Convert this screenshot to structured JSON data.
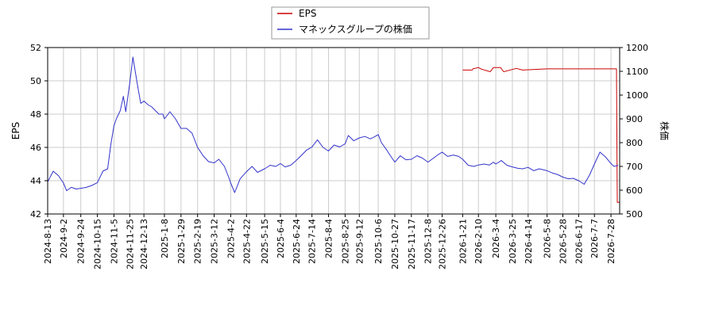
{
  "chart_data": {
    "type": "line",
    "title": "",
    "legend": {
      "placement": "top-center",
      "entries": [
        {
          "label": "EPS",
          "color": "#cc0000"
        },
        {
          "label": "マネックスグループの株価",
          "color": "#3333cc"
        }
      ]
    },
    "x_axis": {
      "type": "date",
      "range": [
        "2024-08-13",
        "2026-08-08"
      ],
      "tick_labels": [
        "2024-8-13",
        "2024-9-2",
        "2024-9-24",
        "2024-10-15",
        "2024-11-5",
        "2024-11-25",
        "2024-12-13",
        "2025-1-8",
        "2025-1-29",
        "2025-2-19",
        "2025-3-12",
        "2025-4-2",
        "2025-4-22",
        "2025-5-15",
        "2025-6-4",
        "2025-6-24",
        "2025-7-14",
        "2025-8-4",
        "2025-8-25",
        "2025-9-12",
        "2025-10-6",
        "2025-10-27",
        "2025-11-17",
        "2025-12-8",
        "2025-12-26",
        "2026-1-21",
        "2026-2-10",
        "2026-3-4",
        "2026-3-25",
        "2026-4-14",
        "2026-5-8",
        "2026-5-28",
        "2026-6-17",
        "2026-7-7",
        "2026-7-28"
      ]
    },
    "y_left": {
      "label": "EPS",
      "min": 42,
      "max": 52,
      "ticks": [
        42,
        44,
        46,
        48,
        50,
        52
      ]
    },
    "y_right": {
      "label": "株価",
      "min": 500,
      "max": 1200,
      "ticks": [
        500,
        600,
        700,
        800,
        900,
        1000,
        1100,
        1200
      ]
    },
    "grid": true,
    "series": [
      {
        "name": "EPS",
        "axis": "left",
        "color": "#cc0000",
        "points": [
          [
            "2026-01-21",
            50.65
          ],
          [
            "2026-02-02",
            50.65
          ],
          [
            "2026-02-03",
            50.72
          ],
          [
            "2026-02-10",
            50.8
          ],
          [
            "2026-02-14",
            50.7
          ],
          [
            "2026-02-25",
            50.55
          ],
          [
            "2026-03-01",
            50.8
          ],
          [
            "2026-03-10",
            50.8
          ],
          [
            "2026-03-14",
            50.55
          ],
          [
            "2026-03-30",
            50.75
          ],
          [
            "2026-04-07",
            50.65
          ],
          [
            "2026-05-08",
            50.72
          ],
          [
            "2026-08-04",
            50.72
          ],
          [
            "2026-08-05",
            42.7
          ],
          [
            "2026-08-08",
            42.7
          ]
        ]
      },
      {
        "name": "マネックスグループの株価",
        "axis": "right",
        "color": "#3333cc",
        "points": [
          [
            "2024-08-13",
            635
          ],
          [
            "2024-08-20",
            680
          ],
          [
            "2024-08-27",
            660
          ],
          [
            "2024-09-02",
            630
          ],
          [
            "2024-09-06",
            598
          ],
          [
            "2024-09-12",
            612
          ],
          [
            "2024-09-18",
            605
          ],
          [
            "2024-09-24",
            608
          ],
          [
            "2024-10-01",
            612
          ],
          [
            "2024-10-08",
            620
          ],
          [
            "2024-10-15",
            632
          ],
          [
            "2024-10-22",
            680
          ],
          [
            "2024-10-28",
            690
          ],
          [
            "2024-11-01",
            790
          ],
          [
            "2024-11-05",
            870
          ],
          [
            "2024-11-08",
            900
          ],
          [
            "2024-11-13",
            935
          ],
          [
            "2024-11-17",
            995
          ],
          [
            "2024-11-20",
            930
          ],
          [
            "2024-11-25",
            1050
          ],
          [
            "2024-11-29",
            1160
          ],
          [
            "2024-12-02",
            1100
          ],
          [
            "2024-12-06",
            1020
          ],
          [
            "2024-12-09",
            965
          ],
          [
            "2024-12-13",
            975
          ],
          [
            "2024-12-18",
            960
          ],
          [
            "2024-12-23",
            950
          ],
          [
            "2025-01-01",
            920
          ],
          [
            "2025-01-06",
            920
          ],
          [
            "2025-01-08",
            900
          ],
          [
            "2025-01-15",
            930
          ],
          [
            "2025-01-22",
            900
          ],
          [
            "2025-01-29",
            860
          ],
          [
            "2025-02-05",
            860
          ],
          [
            "2025-02-12",
            840
          ],
          [
            "2025-02-19",
            780
          ],
          [
            "2025-02-26",
            745
          ],
          [
            "2025-03-05",
            720
          ],
          [
            "2025-03-12",
            715
          ],
          [
            "2025-03-18",
            730
          ],
          [
            "2025-03-25",
            700
          ],
          [
            "2025-03-31",
            650
          ],
          [
            "2025-04-02",
            630
          ],
          [
            "2025-04-07",
            590
          ],
          [
            "2025-04-14",
            648
          ],
          [
            "2025-04-22",
            678
          ],
          [
            "2025-04-29",
            700
          ],
          [
            "2025-05-06",
            675
          ],
          [
            "2025-05-15",
            690
          ],
          [
            "2025-05-22",
            705
          ],
          [
            "2025-05-29",
            700
          ],
          [
            "2025-06-04",
            712
          ],
          [
            "2025-06-10",
            698
          ],
          [
            "2025-06-17",
            705
          ],
          [
            "2025-06-24",
            725
          ],
          [
            "2025-07-01",
            748
          ],
          [
            "2025-07-07",
            768
          ],
          [
            "2025-07-14",
            782
          ],
          [
            "2025-07-21",
            812
          ],
          [
            "2025-07-28",
            780
          ],
          [
            "2025-08-04",
            765
          ],
          [
            "2025-08-11",
            790
          ],
          [
            "2025-08-18",
            782
          ],
          [
            "2025-08-25",
            795
          ],
          [
            "2025-08-29",
            830
          ],
          [
            "2025-09-05",
            808
          ],
          [
            "2025-09-12",
            820
          ],
          [
            "2025-09-19",
            826
          ],
          [
            "2025-09-26",
            816
          ],
          [
            "2025-10-01",
            824
          ],
          [
            "2025-10-06",
            834
          ],
          [
            "2025-10-10",
            800
          ],
          [
            "2025-10-17",
            768
          ],
          [
            "2025-10-22",
            742
          ],
          [
            "2025-10-27",
            718
          ],
          [
            "2025-11-03",
            745
          ],
          [
            "2025-11-10",
            728
          ],
          [
            "2025-11-17",
            730
          ],
          [
            "2025-11-24",
            745
          ],
          [
            "2025-12-01",
            735
          ],
          [
            "2025-12-08",
            718
          ],
          [
            "2025-12-15",
            735
          ],
          [
            "2025-12-22",
            752
          ],
          [
            "2025-12-26",
            760
          ],
          [
            "2026-01-02",
            742
          ],
          [
            "2026-01-09",
            748
          ],
          [
            "2026-01-16",
            742
          ],
          [
            "2026-01-21",
            730
          ],
          [
            "2026-01-28",
            705
          ],
          [
            "2026-02-04",
            700
          ],
          [
            "2026-02-10",
            706
          ],
          [
            "2026-02-17",
            710
          ],
          [
            "2026-02-24",
            706
          ],
          [
            "2026-03-01",
            718
          ],
          [
            "2026-03-04",
            710
          ],
          [
            "2026-03-11",
            725
          ],
          [
            "2026-03-18",
            705
          ],
          [
            "2026-03-25",
            698
          ],
          [
            "2026-04-01",
            692
          ],
          [
            "2026-04-07",
            690
          ],
          [
            "2026-04-14",
            696
          ],
          [
            "2026-04-21",
            682
          ],
          [
            "2026-04-28",
            690
          ],
          [
            "2026-05-08",
            682
          ],
          [
            "2026-05-15",
            672
          ],
          [
            "2026-05-22",
            665
          ],
          [
            "2026-05-28",
            655
          ],
          [
            "2026-06-04",
            648
          ],
          [
            "2026-06-10",
            650
          ],
          [
            "2026-06-17",
            640
          ],
          [
            "2026-06-24",
            625
          ],
          [
            "2026-07-01",
            665
          ],
          [
            "2026-07-07",
            710
          ],
          [
            "2026-07-14",
            760
          ],
          [
            "2026-07-21",
            740
          ],
          [
            "2026-07-28",
            712
          ],
          [
            "2026-08-01",
            700
          ],
          [
            "2026-08-06",
            705
          ]
        ]
      }
    ]
  }
}
